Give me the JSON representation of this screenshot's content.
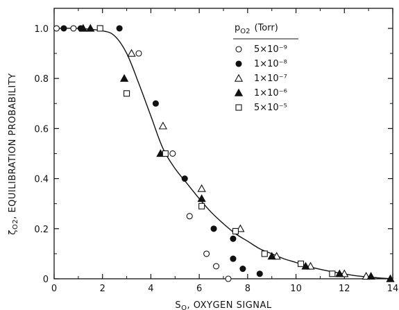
{
  "chart_data": {
    "type": "scatter",
    "title": "",
    "xlabel": "S",
    "xlabel_subscript": "O",
    "xlabel_rest": ", OXYGEN SIGNAL",
    "ylabel": "ζ",
    "ylabel_subscript": "O2",
    "ylabel_rest": ", EQUILIBRATION PROBABILITY",
    "xlim": [
      0,
      14
    ],
    "ylim": [
      0,
      1.08
    ],
    "x_ticks": [
      "0",
      "2",
      "4",
      "6",
      "8",
      "10",
      "12",
      "14"
    ],
    "x_tick_values": [
      0,
      2,
      4,
      6,
      8,
      10,
      12,
      14
    ],
    "y_ticks": [
      "0",
      "0.2",
      "0.4",
      "0.6",
      "0.8",
      "1.0"
    ],
    "y_tick_values": [
      0,
      0.2,
      0.4,
      0.6,
      0.8,
      1.0
    ],
    "grid": false,
    "legend": {
      "placement": "top-right",
      "title": "p",
      "title_subscript": "O2",
      "title_rest": "(Torr)",
      "entries": [
        {
          "label": "5×10⁻⁹",
          "marker": "circle-open"
        },
        {
          "label": "1×10⁻⁸",
          "marker": "circle-filled"
        },
        {
          "label": "1×10⁻⁷",
          "marker": "triangle-open"
        },
        {
          "label": "1×10⁻⁶",
          "marker": "triangle-filled"
        },
        {
          "label": "5×10⁻⁵",
          "marker": "square-open"
        }
      ]
    },
    "series": [
      {
        "marker": "circle-open",
        "x": [
          0.1,
          0.8,
          3.5,
          4.9,
          5.6,
          6.3,
          6.7,
          7.2
        ],
        "y": [
          1.0,
          1.0,
          0.9,
          0.5,
          0.25,
          0.1,
          0.05,
          0.0
        ]
      },
      {
        "marker": "circle-filled",
        "x": [
          0.4,
          1.1,
          2.7,
          4.2,
          5.4,
          6.6,
          7.4,
          7.4,
          7.8,
          8.5
        ],
        "y": [
          1.0,
          1.0,
          1.0,
          0.7,
          0.4,
          0.2,
          0.16,
          0.08,
          0.04,
          0.02
        ]
      },
      {
        "marker": "triangle-open",
        "x": [
          3.2,
          4.5,
          6.1,
          7.7,
          9.2,
          10.6,
          12.0,
          12.9
        ],
        "y": [
          0.9,
          0.61,
          0.36,
          0.2,
          0.09,
          0.05,
          0.02,
          0.01
        ]
      },
      {
        "marker": "triangle-filled",
        "x": [
          1.2,
          1.5,
          2.9,
          4.4,
          6.1,
          9.0,
          10.4,
          11.8,
          13.1,
          13.9
        ],
        "y": [
          1.0,
          1.0,
          0.8,
          0.5,
          0.32,
          0.09,
          0.05,
          0.02,
          0.01,
          0.0
        ]
      },
      {
        "marker": "square-open",
        "x": [
          1.9,
          3.0,
          4.6,
          6.1,
          7.5,
          8.7,
          10.2,
          11.5
        ],
        "y": [
          1.0,
          0.74,
          0.5,
          0.29,
          0.19,
          0.1,
          0.06,
          0.02
        ]
      }
    ],
    "fit_curve": {
      "x": [
        0,
        1.0,
        2.0,
        2.5,
        3.0,
        3.5,
        4.0,
        4.5,
        5.0,
        5.5,
        6.0,
        6.5,
        7.0,
        7.5,
        8.0,
        8.5,
        9.0,
        9.5,
        10.0,
        10.5,
        11.0,
        11.5,
        12.0,
        12.5,
        13.0,
        13.5,
        14.0
      ],
      "y": [
        1.0,
        1.0,
        0.99,
        0.97,
        0.9,
        0.78,
        0.65,
        0.52,
        0.44,
        0.38,
        0.32,
        0.265,
        0.22,
        0.18,
        0.15,
        0.12,
        0.1,
        0.08,
        0.065,
        0.05,
        0.038,
        0.028,
        0.019,
        0.012,
        0.007,
        0.003,
        0.0
      ]
    }
  }
}
